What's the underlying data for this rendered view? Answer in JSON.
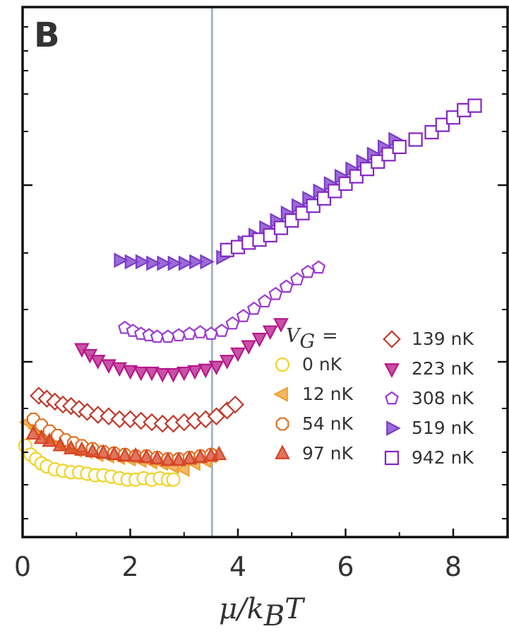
{
  "chart_data": {
    "type": "scatter",
    "panel_label": "B",
    "xlabel": "μ/k",
    "xlabel_sub": "B",
    "xlabel_tail": "T",
    "ylabel": "",
    "xlim": [
      0,
      9
    ],
    "x_ticks": [
      {
        "value": 0,
        "label": "0"
      },
      {
        "value": 2,
        "label": "2"
      },
      {
        "value": 4,
        "label": "4"
      },
      {
        "value": 6,
        "label": "6"
      },
      {
        "value": 8,
        "label": "8"
      }
    ],
    "y_tick_labels": "none",
    "vertical_line_x": 3.52,
    "legend_title": "V",
    "legend_title_sub": "G",
    "legend_title_eq": "=",
    "legend_position": "lower-right",
    "series": [
      {
        "name": "0 nK",
        "marker": "circle-open",
        "color": "#f2d322",
        "points": [
          [
            0.05,
            0.62
          ],
          [
            0.15,
            0.56
          ],
          [
            0.25,
            0.53
          ],
          [
            0.35,
            0.5
          ],
          [
            0.45,
            0.48
          ],
          [
            0.6,
            0.46
          ],
          [
            0.75,
            0.45
          ],
          [
            0.9,
            0.44
          ],
          [
            1.05,
            0.44
          ],
          [
            1.2,
            0.43
          ],
          [
            1.35,
            0.42
          ],
          [
            1.5,
            0.42
          ],
          [
            1.65,
            0.41
          ],
          [
            1.8,
            0.4
          ],
          [
            1.95,
            0.39
          ],
          [
            2.1,
            0.39
          ],
          [
            2.25,
            0.4
          ],
          [
            2.4,
            0.39
          ],
          [
            2.55,
            0.4
          ],
          [
            2.7,
            0.39
          ],
          [
            2.8,
            0.39
          ]
        ]
      },
      {
        "name": "12 nK",
        "marker": "left-triangle",
        "color": "#f0a030",
        "points": [
          [
            0.1,
            0.78
          ],
          [
            0.25,
            0.74
          ],
          [
            0.4,
            0.7
          ],
          [
            0.55,
            0.66
          ],
          [
            0.7,
            0.63
          ],
          [
            0.85,
            0.61
          ],
          [
            1.0,
            0.59
          ],
          [
            1.2,
            0.58
          ],
          [
            1.4,
            0.56
          ],
          [
            1.6,
            0.55
          ],
          [
            1.8,
            0.54
          ],
          [
            2.0,
            0.53
          ],
          [
            2.2,
            0.52
          ],
          [
            2.4,
            0.51
          ],
          [
            2.6,
            0.5
          ],
          [
            2.8,
            0.48
          ],
          [
            3.0,
            0.46
          ],
          [
            3.2,
            0.5
          ],
          [
            3.4,
            0.52
          ],
          [
            3.5,
            0.55
          ]
        ]
      },
      {
        "name": "54 nK",
        "marker": "octagon-open",
        "color": "#e07020",
        "points": [
          [
            0.2,
            0.8
          ],
          [
            0.35,
            0.76
          ],
          [
            0.5,
            0.72
          ],
          [
            0.65,
            0.69
          ],
          [
            0.8,
            0.66
          ],
          [
            0.95,
            0.64
          ],
          [
            1.1,
            0.62
          ],
          [
            1.3,
            0.6
          ],
          [
            1.5,
            0.58
          ],
          [
            1.7,
            0.57
          ],
          [
            1.9,
            0.56
          ],
          [
            2.1,
            0.55
          ],
          [
            2.3,
            0.55
          ],
          [
            2.5,
            0.54
          ],
          [
            2.7,
            0.53
          ],
          [
            2.9,
            0.53
          ],
          [
            3.1,
            0.54
          ],
          [
            3.3,
            0.55
          ],
          [
            3.5,
            0.56
          ]
        ]
      },
      {
        "name": "97 nK",
        "marker": "triangle-up",
        "color": "#d64527",
        "points": [
          [
            0.2,
            0.7
          ],
          [
            0.35,
            0.67
          ],
          [
            0.5,
            0.65
          ],
          [
            0.7,
            0.62
          ],
          [
            0.9,
            0.6
          ],
          [
            1.1,
            0.59
          ],
          [
            1.3,
            0.58
          ],
          [
            1.5,
            0.57
          ],
          [
            1.7,
            0.56
          ],
          [
            1.9,
            0.55
          ],
          [
            2.1,
            0.55
          ],
          [
            2.3,
            0.54
          ],
          [
            2.5,
            0.53
          ],
          [
            2.7,
            0.52
          ],
          [
            2.9,
            0.52
          ],
          [
            3.1,
            0.53
          ],
          [
            3.3,
            0.54
          ],
          [
            3.5,
            0.55
          ],
          [
            3.65,
            0.56
          ]
        ]
      },
      {
        "name": "139 nK",
        "marker": "diamond-open",
        "color": "#c0392b",
        "points": [
          [
            0.3,
            0.96
          ],
          [
            0.45,
            0.94
          ],
          [
            0.6,
            0.92
          ],
          [
            0.75,
            0.9
          ],
          [
            0.9,
            0.89
          ],
          [
            1.05,
            0.87
          ],
          [
            1.2,
            0.85
          ],
          [
            1.4,
            0.83
          ],
          [
            1.6,
            0.82
          ],
          [
            1.8,
            0.8
          ],
          [
            2.0,
            0.8
          ],
          [
            2.2,
            0.79
          ],
          [
            2.4,
            0.78
          ],
          [
            2.6,
            0.77
          ],
          [
            2.8,
            0.77
          ],
          [
            3.0,
            0.78
          ],
          [
            3.2,
            0.79
          ],
          [
            3.4,
            0.8
          ],
          [
            3.6,
            0.82
          ],
          [
            3.8,
            0.86
          ],
          [
            3.95,
            0.9
          ]
        ]
      },
      {
        "name": "223 nK",
        "marker": "triangle-down",
        "color": "#b5178a",
        "points": [
          [
            1.1,
            1.28
          ],
          [
            1.25,
            1.24
          ],
          [
            1.4,
            1.2
          ],
          [
            1.6,
            1.17
          ],
          [
            1.8,
            1.15
          ],
          [
            2.0,
            1.13
          ],
          [
            2.2,
            1.12
          ],
          [
            2.4,
            1.12
          ],
          [
            2.6,
            1.11
          ],
          [
            2.8,
            1.11
          ],
          [
            3.0,
            1.12
          ],
          [
            3.2,
            1.13
          ],
          [
            3.4,
            1.14
          ],
          [
            3.6,
            1.16
          ],
          [
            3.8,
            1.2
          ],
          [
            4.0,
            1.25
          ],
          [
            4.2,
            1.3
          ],
          [
            4.4,
            1.35
          ],
          [
            4.6,
            1.4
          ],
          [
            4.8,
            1.45
          ]
        ]
      },
      {
        "name": "308 nK",
        "marker": "hexagon-open",
        "color": "#9b3bcf",
        "points": [
          [
            1.9,
            1.42
          ],
          [
            2.05,
            1.4
          ],
          [
            2.2,
            1.38
          ],
          [
            2.35,
            1.37
          ],
          [
            2.5,
            1.36
          ],
          [
            2.7,
            1.36
          ],
          [
            2.9,
            1.37
          ],
          [
            3.1,
            1.38
          ],
          [
            3.3,
            1.39
          ],
          [
            3.5,
            1.38
          ],
          [
            3.7,
            1.4
          ],
          [
            3.9,
            1.45
          ],
          [
            4.1,
            1.5
          ],
          [
            4.3,
            1.55
          ],
          [
            4.5,
            1.6
          ],
          [
            4.7,
            1.65
          ],
          [
            4.9,
            1.7
          ],
          [
            5.1,
            1.75
          ],
          [
            5.3,
            1.8
          ],
          [
            5.5,
            1.83
          ]
        ]
      },
      {
        "name": "519 nK",
        "marker": "right-triangle",
        "color": "#7b3bc8",
        "points": [
          [
            1.8,
            1.88
          ],
          [
            2.0,
            1.87
          ],
          [
            2.2,
            1.87
          ],
          [
            2.4,
            1.86
          ],
          [
            2.6,
            1.86
          ],
          [
            2.8,
            1.86
          ],
          [
            3.0,
            1.86
          ],
          [
            3.2,
            1.87
          ],
          [
            3.4,
            1.87
          ],
          [
            3.7,
            1.9
          ],
          [
            3.9,
            1.95
          ],
          [
            4.1,
            2.0
          ],
          [
            4.3,
            2.05
          ],
          [
            4.5,
            2.1
          ],
          [
            4.7,
            2.15
          ],
          [
            4.9,
            2.2
          ],
          [
            5.1,
            2.25
          ],
          [
            5.3,
            2.3
          ],
          [
            5.5,
            2.35
          ],
          [
            5.7,
            2.4
          ],
          [
            5.9,
            2.45
          ],
          [
            6.1,
            2.5
          ],
          [
            6.3,
            2.55
          ],
          [
            6.5,
            2.6
          ],
          [
            6.7,
            2.65
          ],
          [
            6.9,
            2.7
          ]
        ]
      },
      {
        "name": "942 nK",
        "marker": "square-open",
        "color": "#8426c4",
        "points": [
          [
            3.8,
            1.95
          ],
          [
            4.0,
            1.97
          ],
          [
            4.2,
            2.0
          ],
          [
            4.4,
            2.02
          ],
          [
            4.6,
            2.05
          ],
          [
            4.8,
            2.1
          ],
          [
            5.0,
            2.15
          ],
          [
            5.2,
            2.2
          ],
          [
            5.4,
            2.25
          ],
          [
            5.6,
            2.3
          ],
          [
            5.8,
            2.35
          ],
          [
            6.0,
            2.4
          ],
          [
            6.2,
            2.45
          ],
          [
            6.4,
            2.5
          ],
          [
            6.6,
            2.55
          ],
          [
            6.8,
            2.6
          ],
          [
            7.0,
            2.65
          ],
          [
            7.3,
            2.7
          ],
          [
            7.6,
            2.75
          ],
          [
            7.8,
            2.8
          ],
          [
            8.0,
            2.85
          ],
          [
            8.2,
            2.9
          ],
          [
            8.4,
            2.93
          ]
        ]
      }
    ]
  }
}
